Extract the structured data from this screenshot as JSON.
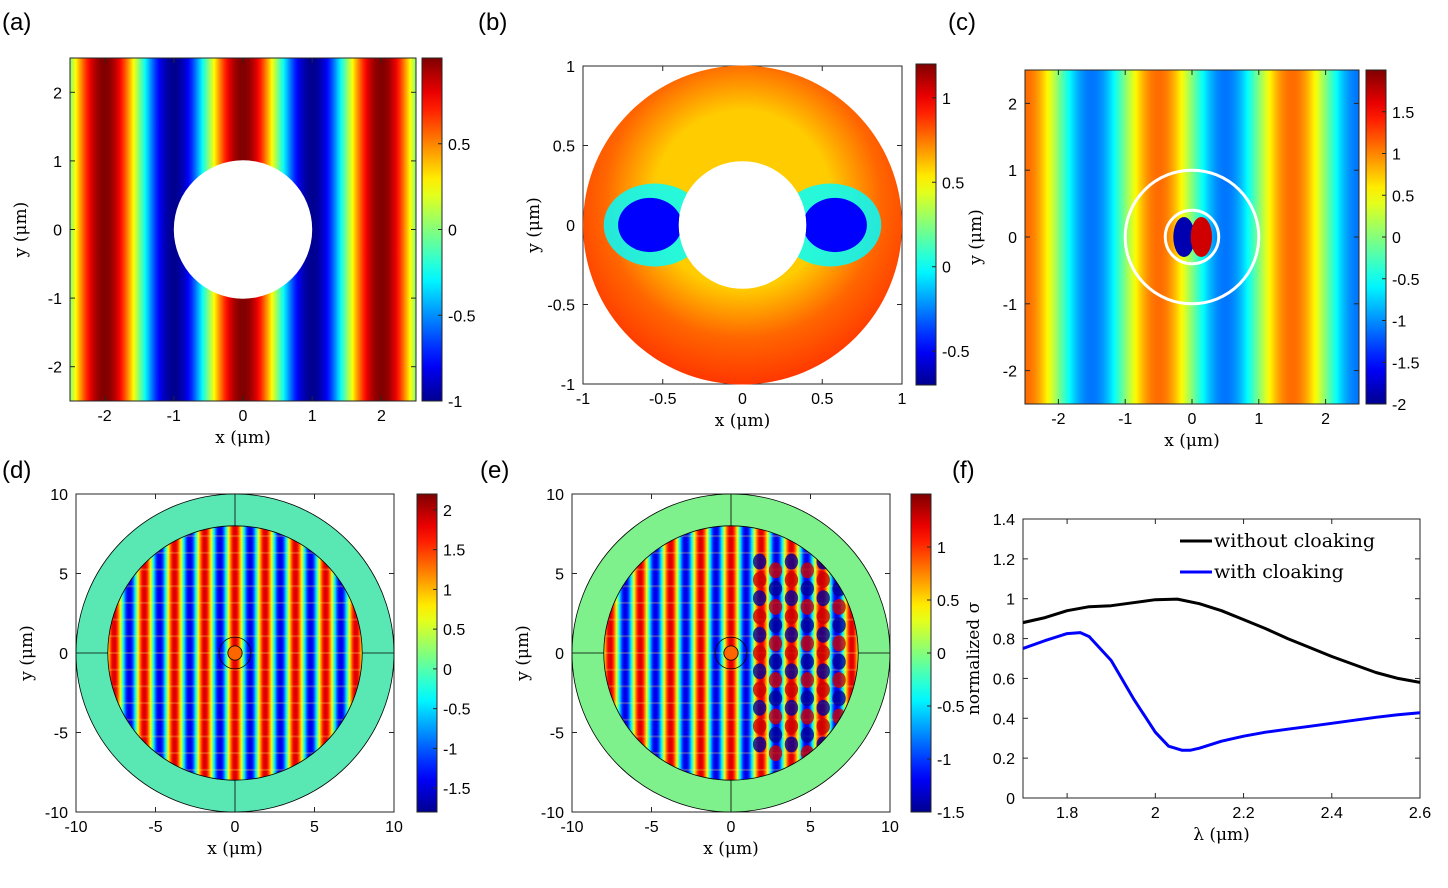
{
  "figure": {
    "description_free": true,
    "panels": [
      "(a)",
      "(b)",
      "(c)",
      "(d)",
      "(e)",
      "(f)"
    ]
  },
  "colors": {
    "jet_stops": [
      "#00008f",
      "#0000ff",
      "#00ffff",
      "#ffff00",
      "#ff0000",
      "#800000"
    ],
    "ring_cyan": "#59e8b4",
    "ring_green": "#7ef08c",
    "line_black": "#000000",
    "line_blue": "#0000ff"
  },
  "chart_data": [
    {
      "id": "a",
      "type": "heatmap",
      "label": "(a)",
      "xlabel": "x (μm)",
      "ylabel": "y (μm)",
      "xlim": [
        -2.5,
        2.5
      ],
      "ylim": [
        -2.5,
        2.5
      ],
      "xticks": [
        -2,
        -1,
        0,
        1,
        2
      ],
      "yticks": [
        -2,
        -1,
        0,
        1,
        2
      ],
      "xticklabels": [
        "-2",
        "-1",
        "0",
        "1",
        "2"
      ],
      "yticklabels": [
        "-2",
        "-1",
        "0",
        "1",
        "2"
      ],
      "clim": [
        -1,
        1
      ],
      "cticks": [
        -1,
        -0.5,
        0,
        0.5
      ],
      "cticklabels": [
        "-1",
        "-0.5",
        "0",
        "0.5"
      ],
      "field": "plane wave along x, wavelength 2 μm, excluded circle r = 1"
    },
    {
      "id": "b",
      "type": "heatmap",
      "label": "(b)",
      "xlabel": "x (μm)",
      "ylabel": "y (μm)",
      "xlim": [
        -1,
        1
      ],
      "ylim": [
        -1,
        1
      ],
      "xticks": [
        -1,
        -0.5,
        0,
        0.5,
        1
      ],
      "yticks": [
        -1,
        -0.5,
        0,
        0.5,
        1
      ],
      "xticklabels": [
        "-1",
        "-0.5",
        "0",
        "0.5",
        "1"
      ],
      "yticklabels": [
        "-1",
        "-0.5",
        "0",
        "0.5",
        "1"
      ],
      "clim": [
        -0.7,
        1.2
      ],
      "cticks": [
        -0.5,
        0,
        0.5,
        1
      ],
      "cticklabels": [
        "-0.5",
        "0",
        "0.5",
        "1"
      ],
      "field": "annulus 0.4 < r < 1, minima near (±0.55, 0)"
    },
    {
      "id": "c",
      "type": "heatmap",
      "label": "(c)",
      "xlabel": "x (μm)",
      "ylabel": "y (μm)",
      "xlim": [
        -2.5,
        2.5
      ],
      "ylim": [
        -2.5,
        2.5
      ],
      "xticks": [
        -2,
        -1,
        0,
        1,
        2
      ],
      "yticks": [
        -2,
        -1,
        0,
        1,
        2
      ],
      "xticklabels": [
        "-2",
        "-1",
        "0",
        "1",
        "2"
      ],
      "yticklabels": [
        "-2",
        "-1",
        "0",
        "1",
        "2"
      ],
      "clim": [
        -2,
        2
      ],
      "cticks": [
        -2,
        -1.5,
        -1,
        -0.5,
        0,
        0.5,
        1,
        1.5
      ],
      "cticklabels": [
        "-2",
        "-1.5",
        "-1",
        "-0.5",
        "0",
        "0.5",
        "1",
        "1.5"
      ],
      "field": "plane wave with cloak; white circles r = 0.4 and r = 1"
    },
    {
      "id": "d",
      "type": "heatmap",
      "label": "(d)",
      "xlabel": "x (μm)",
      "ylabel": "y (μm)",
      "xlim": [
        -10,
        10
      ],
      "ylim": [
        -10,
        10
      ],
      "xticks": [
        -10,
        -5,
        0,
        5,
        10
      ],
      "yticks": [
        -10,
        -5,
        0,
        5,
        10
      ],
      "xticklabels": [
        "-10",
        "-5",
        "0",
        "5",
        "10"
      ],
      "yticklabels": [
        "-10",
        "-5",
        "0",
        "5",
        "10"
      ],
      "clim": [
        -1.8,
        2.2
      ],
      "cticks": [
        -1.5,
        -1,
        -0.5,
        0,
        0.5,
        1,
        1.5,
        2
      ],
      "cticklabels": [
        "-1.5",
        "-1",
        "-0.5",
        "0",
        "0.5",
        "1",
        "1.5",
        "2"
      ],
      "field": "domain r < 8 with PML ring 8 < r < 10, cloaked scatterer at origin"
    },
    {
      "id": "e",
      "type": "heatmap",
      "label": "(e)",
      "xlabel": "x (μm)",
      "ylabel": "y (μm)",
      "xlim": [
        -10,
        10
      ],
      "ylim": [
        -10,
        10
      ],
      "xticks": [
        -10,
        -5,
        0,
        5,
        10
      ],
      "yticks": [
        -10,
        -5,
        0,
        5,
        10
      ],
      "xticklabels": [
        "-10",
        "-5",
        "0",
        "5",
        "10"
      ],
      "yticklabels": [
        "-10",
        "-5",
        "0",
        "5",
        "10"
      ],
      "clim": [
        -1.5,
        1.5
      ],
      "cticks": [
        -1.5,
        -1,
        -0.5,
        0,
        0.5,
        1
      ],
      "cticklabels": [
        "-1.5",
        "-1",
        "-0.5",
        "0",
        "0.5",
        "1"
      ],
      "field": "domain r < 8 with PML ring, uncloaked scatterer, shadow for x > 1"
    },
    {
      "id": "f",
      "type": "line",
      "label": "(f)",
      "xlabel": "λ (μm)",
      "ylabel": "normalized σ",
      "xlim": [
        1.7,
        2.6
      ],
      "ylim": [
        0,
        1.4
      ],
      "xticks": [
        1.8,
        2,
        2.2,
        2.4,
        2.6
      ],
      "xticklabels": [
        "1.8",
        "2",
        "2.2",
        "2.4",
        "2.6"
      ],
      "yticks": [
        0,
        0.2,
        0.4,
        0.6,
        0.8,
        1,
        1.2,
        1.4
      ],
      "yticklabels": [
        "0",
        "0.2",
        "0.4",
        "0.6",
        "0.8",
        "1",
        "1.2",
        "1.4"
      ],
      "legend_position": "top-right",
      "series": [
        {
          "name": "without cloaking",
          "color": "#000000",
          "x": [
            1.7,
            1.75,
            1.8,
            1.85,
            1.9,
            1.95,
            2.0,
            2.05,
            2.1,
            2.15,
            2.2,
            2.25,
            2.3,
            2.35,
            2.4,
            2.45,
            2.5,
            2.55,
            2.6
          ],
          "y": [
            0.88,
            0.905,
            0.94,
            0.96,
            0.965,
            0.98,
            0.995,
            0.998,
            0.975,
            0.94,
            0.895,
            0.85,
            0.8,
            0.755,
            0.71,
            0.67,
            0.63,
            0.6,
            0.58
          ]
        },
        {
          "name": "with cloaking",
          "color": "#0000ff",
          "x": [
            1.7,
            1.75,
            1.8,
            1.83,
            1.85,
            1.9,
            1.95,
            2.0,
            2.03,
            2.06,
            2.08,
            2.1,
            2.15,
            2.2,
            2.25,
            2.3,
            2.35,
            2.4,
            2.45,
            2.5,
            2.55,
            2.6
          ],
          "y": [
            0.75,
            0.79,
            0.825,
            0.83,
            0.81,
            0.69,
            0.5,
            0.33,
            0.26,
            0.24,
            0.24,
            0.25,
            0.285,
            0.31,
            0.33,
            0.345,
            0.36,
            0.375,
            0.39,
            0.405,
            0.418,
            0.428
          ]
        }
      ]
    }
  ]
}
